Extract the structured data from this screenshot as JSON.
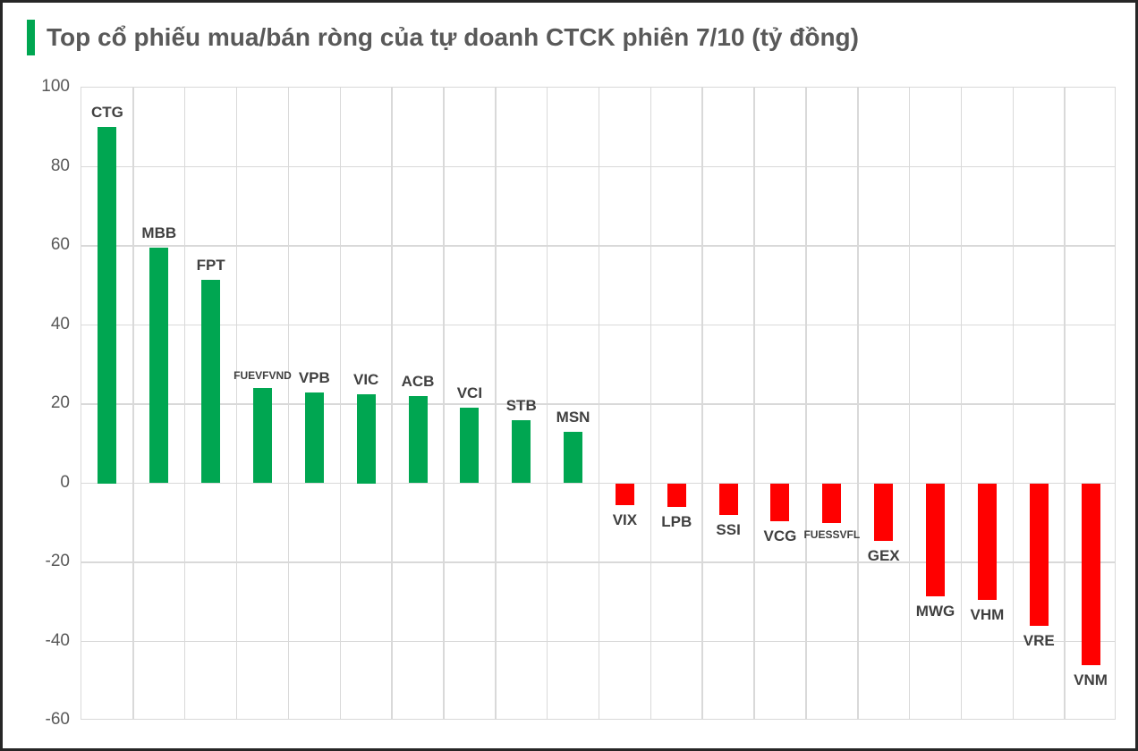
{
  "header": {
    "title": "Top cổ phiếu mua/bán ròng của tự doanh CTCK phiên 7/10 (tỷ đồng)"
  },
  "colors": {
    "positive_bar": "#00A651",
    "negative_bar": "#FF0000",
    "accent_bar": "#00A651",
    "title_text": "#595959",
    "axis_text": "#595959",
    "bar_label_text": "#404040",
    "gridline": "#D9D9D9",
    "frame_border": "#262626",
    "background": "#FFFFFF"
  },
  "chart_data": {
    "type": "bar",
    "title": "Top cổ phiếu mua/bán ròng của tự doanh CTCK phiên 7/10 (tỷ đồng)",
    "xlabel": "",
    "ylabel": "",
    "unit": "tỷ đồng",
    "categories": [
      "CTG",
      "MBB",
      "FPT",
      "FUEVFVND",
      "VPB",
      "VIC",
      "ACB",
      "VCI",
      "STB",
      "MSN",
      "VIX",
      "LPB",
      "SSI",
      "VCG",
      "FUESSVFL",
      "GEX",
      "MWG",
      "VHM",
      "VRE",
      "VNM"
    ],
    "values": [
      90,
      59.5,
      51.5,
      24,
      23,
      22.5,
      22,
      19,
      16,
      13,
      -5.5,
      -6,
      -8,
      -9.5,
      -10,
      -14.5,
      -28.5,
      -29.5,
      -36,
      -46
    ],
    "ylim": [
      -60,
      100
    ],
    "yticks": [
      100,
      80,
      60,
      40,
      20,
      0,
      -20,
      -40,
      -60
    ],
    "grid": "both",
    "legend": "none",
    "bar_color_rule": "green for net buy (positive), red for net sell (negative)"
  }
}
